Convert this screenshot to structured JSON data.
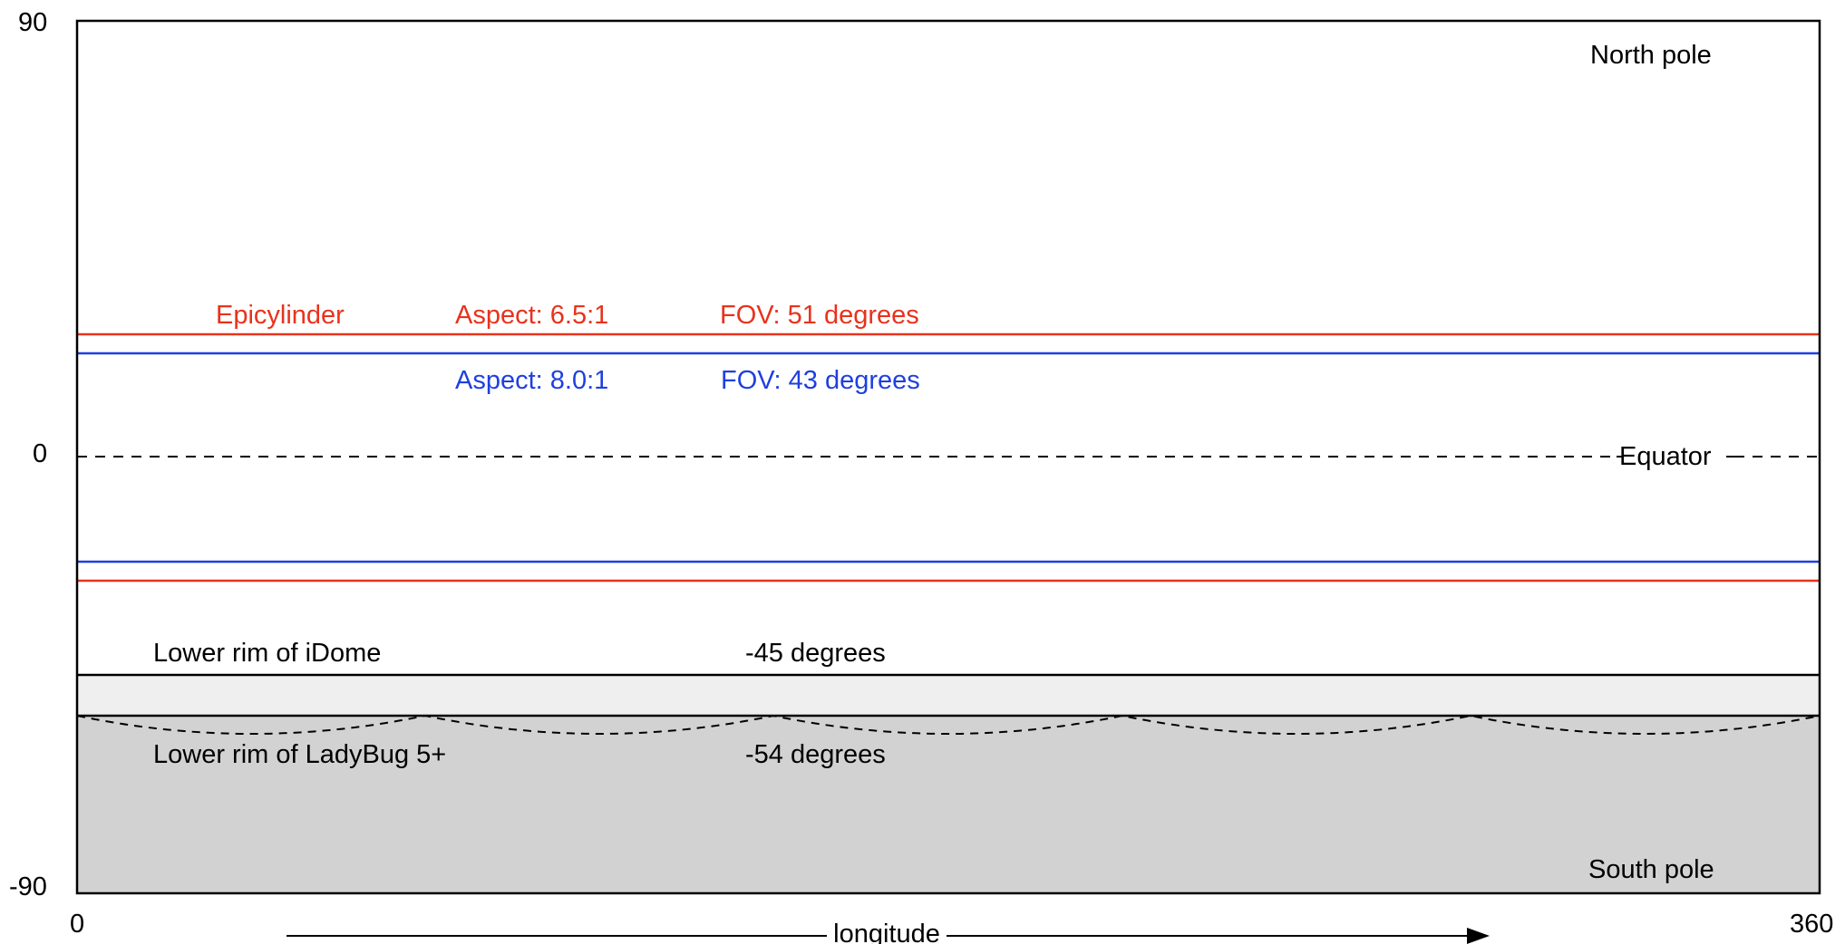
{
  "colors": {
    "red": "#e8321c",
    "blue": "#1f3fe0",
    "black": "#000000",
    "idome_band": "#efefef",
    "ladybug_band": "#d2d2d2"
  },
  "axes": {
    "y_top_label": "90",
    "y_mid_label": "0",
    "y_bottom_label": "-90",
    "x_left_label": "0",
    "x_right_label": "360",
    "x_axis_label": "longitude"
  },
  "labels": {
    "north_pole": "North pole",
    "south_pole": "South pole",
    "equator": "Equator"
  },
  "epicylinder": {
    "name": "Epicylinder",
    "red": {
      "aspect": "Aspect: 6.5:1",
      "fov": "FOV: 51 degrees"
    },
    "blue": {
      "aspect": "Aspect: 8.0:1",
      "fov": "FOV: 43 degrees"
    }
  },
  "idome": {
    "label": "Lower rim of iDome",
    "degrees": "-45 degrees"
  },
  "ladybug": {
    "label": "Lower rim of LadyBug 5+",
    "degrees": "-54 degrees"
  }
}
